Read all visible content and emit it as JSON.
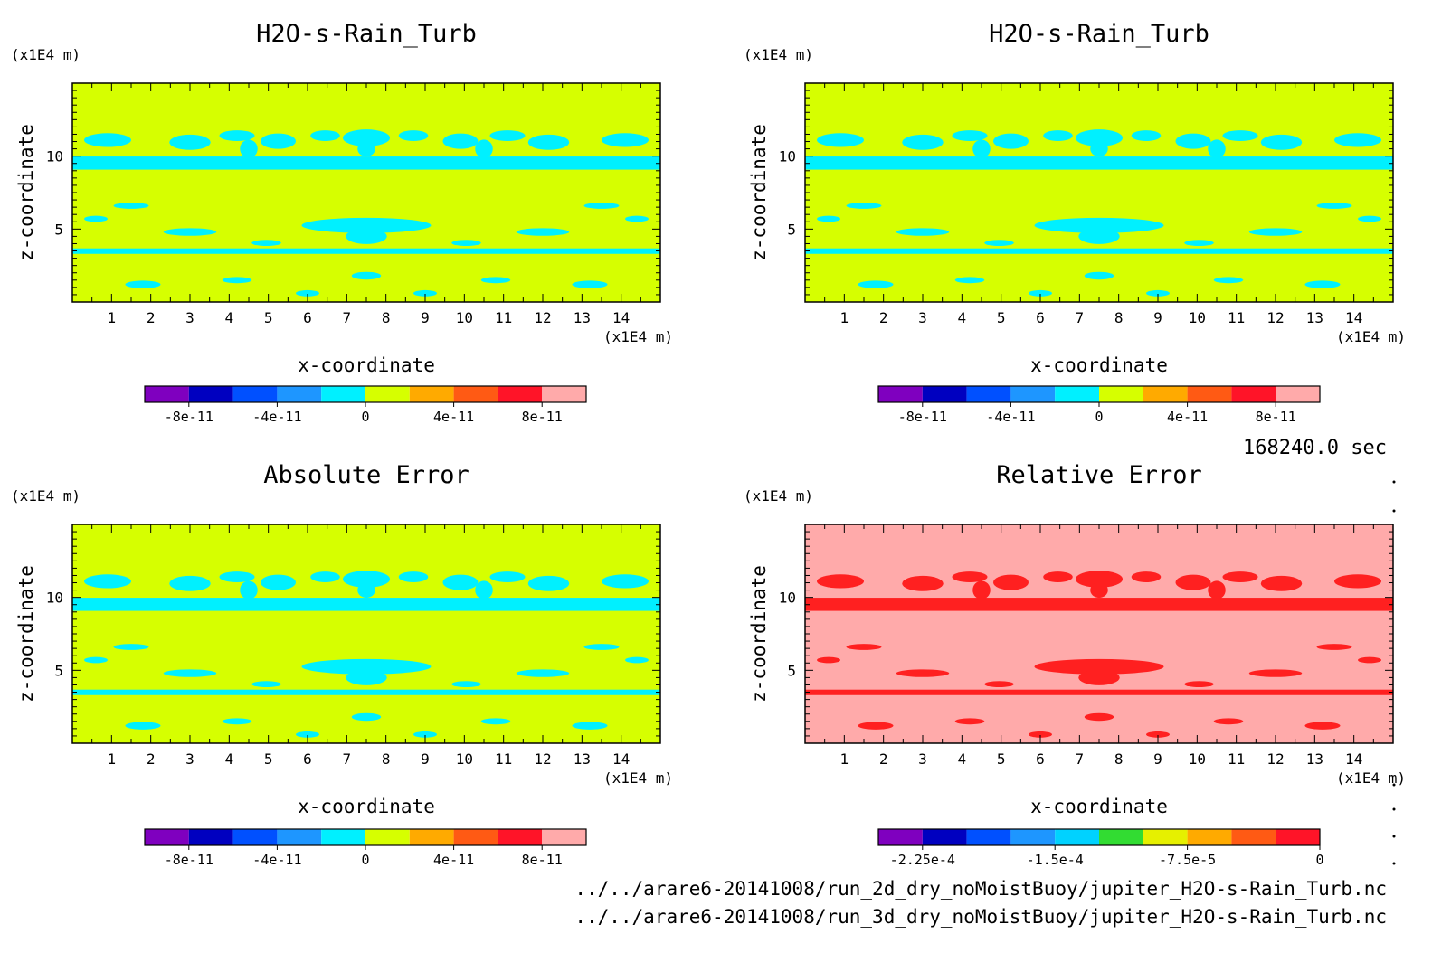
{
  "time_label": "168240.0 sec",
  "files": [
    "../../arare6-20141008/run_2d_dry_noMoistBuoy/jupiter_H2O-s-Rain_Turb.nc",
    "../../arare6-20141008/run_3d_dry_noMoistBuoy/jupiter_H2O-s-Rain_Turb.nc"
  ],
  "colors": {
    "cyan": "#00f0ff",
    "yellowgreen": "#d6ff00",
    "red": "#ff2020",
    "pink": "#ffaaaa"
  },
  "colorbars": {
    "main": {
      "colors": [
        "#7f00bf",
        "#0000c0",
        "#0050ff",
        "#1e96ff",
        "#00f0ff",
        "#d6ff00",
        "#ffaa00",
        "#ff5a14",
        "#ff1428",
        "#ffaaaa"
      ],
      "ticks": [
        "-8e-11",
        "-4e-11",
        "0",
        "4e-11",
        "8e-11"
      ]
    },
    "rel": {
      "colors": [
        "#7f00bf",
        "#0000c0",
        "#0050ff",
        "#1e96ff",
        "#00d2ff",
        "#32dc32",
        "#e6f000",
        "#ffaa00",
        "#ff5a14",
        "#ff1428"
      ],
      "ticks": [
        "-2.25e-4",
        "-1.5e-4",
        "-7.5e-5",
        "0"
      ]
    }
  },
  "chart_data": [
    {
      "type": "heatmap",
      "title": "H2O-s-Rain_Turb",
      "xlabel": "x-coordinate",
      "ylabel": "z-coordinate",
      "x_unit": "(x1E4 m)",
      "y_unit": "(x1E4 m)",
      "xlim": [
        0,
        15
      ],
      "ylim": [
        0,
        15
      ],
      "xticks": [
        "1",
        "2",
        "3",
        "4",
        "5",
        "6",
        "7",
        "8",
        "9",
        "10",
        "11",
        "12",
        "13",
        "14"
      ],
      "yticks": [
        "5",
        "10"
      ],
      "colorbar": "main",
      "background_level": "0 to 2e-11",
      "feature_level": "-2e-11 to 0"
    },
    {
      "type": "heatmap",
      "title": "H2O-s-Rain_Turb",
      "xlabel": "x-coordinate",
      "ylabel": "z-coordinate",
      "x_unit": "(x1E4 m)",
      "y_unit": "(x1E4 m)",
      "xlim": [
        0,
        15
      ],
      "ylim": [
        0,
        15
      ],
      "xticks": [
        "1",
        "2",
        "3",
        "4",
        "5",
        "6",
        "7",
        "8",
        "9",
        "10",
        "11",
        "12",
        "13",
        "14"
      ],
      "yticks": [
        "5",
        "10"
      ],
      "colorbar": "main",
      "background_level": "0 to 2e-11",
      "feature_level": "-2e-11 to 0"
    },
    {
      "type": "heatmap",
      "title": "Absolute Error",
      "xlabel": "x-coordinate",
      "ylabel": "z-coordinate",
      "x_unit": "(x1E4 m)",
      "y_unit": "(x1E4 m)",
      "xlim": [
        0,
        15
      ],
      "ylim": [
        0,
        15
      ],
      "xticks": [
        "1",
        "2",
        "3",
        "4",
        "5",
        "6",
        "7",
        "8",
        "9",
        "10",
        "11",
        "12",
        "13",
        "14"
      ],
      "yticks": [
        "5",
        "10"
      ],
      "colorbar": "main",
      "background_level": "0 to 2e-11",
      "feature_level": "-2e-11 to 0"
    },
    {
      "type": "heatmap",
      "title": "Relative Error",
      "xlabel": "x-coordinate",
      "ylabel": "z-coordinate",
      "x_unit": "(x1E4 m)",
      "y_unit": "(x1E4 m)",
      "xlim": [
        0,
        15
      ],
      "ylim": [
        0,
        15
      ],
      "xticks": [
        "1",
        "2",
        "3",
        "4",
        "5",
        "6",
        "7",
        "8",
        "9",
        "10",
        "11",
        "12",
        "13",
        "14"
      ],
      "yticks": [
        "5",
        "10"
      ],
      "colorbar": "rel",
      "background_level": "-2.5e-5 to 0",
      "feature_level": "-5e-5 to -2.5e-5"
    }
  ]
}
